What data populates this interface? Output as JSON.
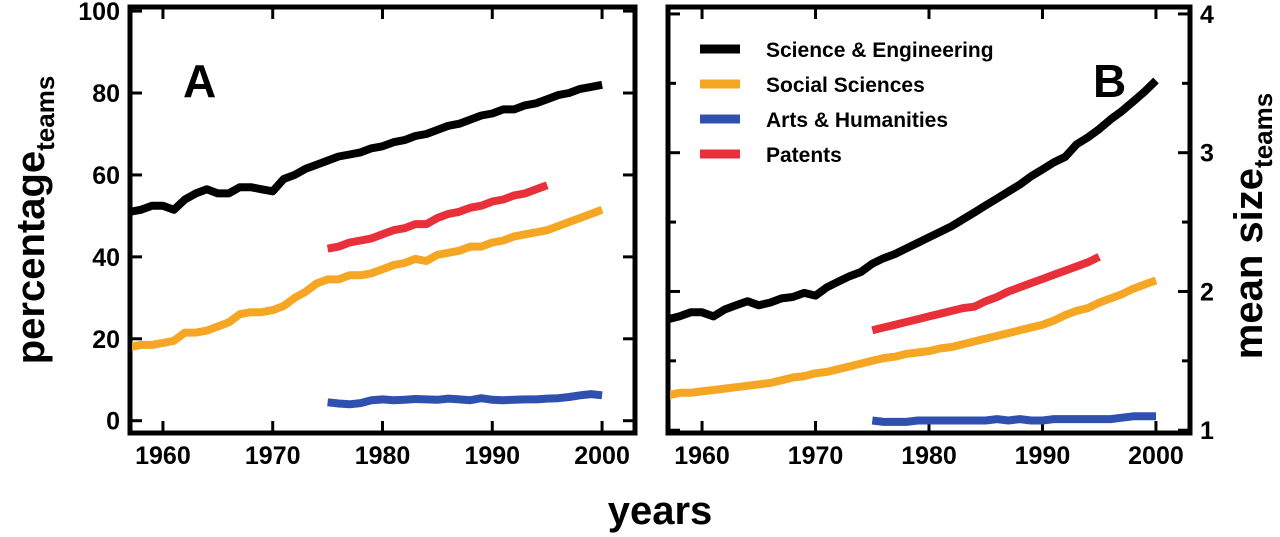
{
  "figure": {
    "xlabel": "years",
    "ylabel_left": {
      "main": "percentage",
      "sub": "teams"
    },
    "ylabel_right": {
      "main": "mean size",
      "sub": "teams"
    }
  },
  "chart_data": [
    {
      "type": "line",
      "panel": "A",
      "title": "",
      "xlabel": "years",
      "ylabel": "percentage teams",
      "xlim": [
        1957,
        2003
      ],
      "ylim": [
        -3,
        101
      ],
      "xticks": [
        1960,
        1970,
        1980,
        1990,
        2000
      ],
      "xtick_labels": [
        "1960",
        "1970",
        "1980",
        "1990",
        "2000"
      ],
      "yticks": [
        0,
        20,
        40,
        60,
        80,
        100
      ],
      "ytick_labels": [
        "0",
        "20",
        "40",
        "60",
        "80",
        "100"
      ],
      "grid": false,
      "series": [
        {
          "name": "Science & Engineering",
          "color": "#000000",
          "x": [
            1957,
            1958,
            1959,
            1960,
            1961,
            1962,
            1963,
            1964,
            1965,
            1966,
            1967,
            1968,
            1969,
            1970,
            1971,
            1972,
            1973,
            1974,
            1975,
            1976,
            1977,
            1978,
            1979,
            1980,
            1981,
            1982,
            1983,
            1984,
            1985,
            1986,
            1987,
            1988,
            1989,
            1990,
            1991,
            1992,
            1993,
            1994,
            1995,
            1996,
            1997,
            1998,
            1999,
            2000
          ],
          "y": [
            51,
            51.5,
            52.5,
            52.5,
            51.5,
            54,
            55.5,
            56.5,
            55.5,
            55.5,
            57,
            57,
            56.5,
            56,
            59,
            60,
            61.5,
            62.5,
            63.5,
            64.5,
            65,
            65.5,
            66.5,
            67,
            68,
            68.5,
            69.5,
            70,
            71,
            72,
            72.5,
            73.5,
            74.5,
            75,
            76,
            76,
            77,
            77.5,
            78.5,
            79.5,
            80,
            81,
            81.5,
            82
          ]
        },
        {
          "name": "Social Sciences",
          "color": "#F5A623",
          "x": [
            1957,
            1958,
            1959,
            1960,
            1961,
            1962,
            1963,
            1964,
            1965,
            1966,
            1967,
            1968,
            1969,
            1970,
            1971,
            1972,
            1973,
            1974,
            1975,
            1976,
            1977,
            1978,
            1979,
            1980,
            1981,
            1982,
            1983,
            1984,
            1985,
            1986,
            1987,
            1988,
            1989,
            1990,
            1991,
            1992,
            1993,
            1994,
            1995,
            1996,
            1997,
            1998,
            1999,
            2000
          ],
          "y": [
            18,
            18.5,
            18.5,
            19,
            19.5,
            21.5,
            21.5,
            22,
            23,
            24,
            26,
            26.5,
            26.5,
            27,
            28,
            30,
            31.5,
            33.5,
            34.5,
            34.5,
            35.5,
            35.5,
            36,
            37,
            38,
            38.5,
            39.5,
            39,
            40.5,
            41,
            41.5,
            42.5,
            42.5,
            43.5,
            44,
            45,
            45.5,
            46,
            46.5,
            47.5,
            48.5,
            49.5,
            50.5,
            51.5
          ]
        },
        {
          "name": "Arts & Humanities",
          "color": "#3050B0",
          "x": [
            1975,
            1976,
            1977,
            1978,
            1979,
            1980,
            1981,
            1982,
            1983,
            1984,
            1985,
            1986,
            1987,
            1988,
            1989,
            1990,
            1991,
            1992,
            1993,
            1994,
            1995,
            1996,
            1997,
            1998,
            1999,
            2000
          ],
          "y": [
            4.5,
            4.2,
            4.0,
            4.3,
            5.0,
            5.2,
            5.0,
            5.1,
            5.3,
            5.2,
            5.1,
            5.4,
            5.2,
            5.0,
            5.5,
            5.1,
            5.0,
            5.1,
            5.2,
            5.2,
            5.4,
            5.5,
            5.8,
            6.2,
            6.5,
            6.2
          ]
        },
        {
          "name": "Patents",
          "color": "#E8303A",
          "x": [
            1975,
            1976,
            1977,
            1978,
            1979,
            1980,
            1981,
            1982,
            1983,
            1984,
            1985,
            1986,
            1987,
            1988,
            1989,
            1990,
            1991,
            1992,
            1993,
            1994,
            1995
          ],
          "y": [
            42,
            42.5,
            43.5,
            44,
            44.5,
            45.5,
            46.5,
            47,
            48,
            48,
            49.5,
            50.5,
            51,
            52,
            52.5,
            53.5,
            54,
            55,
            55.5,
            56.5,
            57.5
          ]
        }
      ]
    },
    {
      "type": "line",
      "panel": "B",
      "title": "",
      "xlabel": "years",
      "ylabel": "mean size teams",
      "xlim": [
        1957,
        2003
      ],
      "ylim": [
        0.98,
        4.05
      ],
      "xticks": [
        1960,
        1970,
        1980,
        1990,
        2000
      ],
      "xtick_labels": [
        "1960",
        "1970",
        "1980",
        "1990",
        "2000"
      ],
      "yticks": [
        1,
        2,
        3,
        4
      ],
      "ytick_labels": [
        "1",
        "2",
        "3",
        "4"
      ],
      "yminor_ticks": [
        1.5,
        2.5,
        3.5
      ],
      "grid": false,
      "legend": "top-left",
      "series": [
        {
          "name": "Science & Engineering",
          "color": "#000000",
          "x": [
            1957,
            1958,
            1959,
            1960,
            1961,
            1962,
            1963,
            1964,
            1965,
            1966,
            1967,
            1968,
            1969,
            1970,
            1971,
            1972,
            1973,
            1974,
            1975,
            1976,
            1977,
            1978,
            1979,
            1980,
            1981,
            1982,
            1983,
            1984,
            1985,
            1986,
            1987,
            1988,
            1989,
            1990,
            1991,
            1992,
            1993,
            1994,
            1995,
            1996,
            1997,
            1998,
            1999,
            2000
          ],
          "y": [
            1.8,
            1.82,
            1.85,
            1.85,
            1.82,
            1.87,
            1.9,
            1.93,
            1.9,
            1.92,
            1.95,
            1.96,
            1.99,
            1.97,
            2.03,
            2.07,
            2.11,
            2.14,
            2.2,
            2.24,
            2.27,
            2.31,
            2.35,
            2.39,
            2.43,
            2.47,
            2.52,
            2.57,
            2.62,
            2.67,
            2.72,
            2.77,
            2.83,
            2.88,
            2.93,
            2.97,
            3.06,
            3.11,
            3.17,
            3.24,
            3.3,
            3.37,
            3.44,
            3.52
          ]
        },
        {
          "name": "Social Sciences",
          "color": "#F5A623",
          "x": [
            1957,
            1958,
            1959,
            1960,
            1961,
            1962,
            1963,
            1964,
            1965,
            1966,
            1967,
            1968,
            1969,
            1970,
            1971,
            1972,
            1973,
            1974,
            1975,
            1976,
            1977,
            1978,
            1979,
            1980,
            1981,
            1982,
            1983,
            1984,
            1985,
            1986,
            1987,
            1988,
            1989,
            1990,
            1991,
            1992,
            1993,
            1994,
            1995,
            1996,
            1997,
            1998,
            1999,
            2000
          ],
          "y": [
            1.25,
            1.27,
            1.27,
            1.28,
            1.29,
            1.3,
            1.31,
            1.32,
            1.33,
            1.34,
            1.36,
            1.38,
            1.39,
            1.41,
            1.42,
            1.44,
            1.46,
            1.48,
            1.5,
            1.52,
            1.53,
            1.55,
            1.56,
            1.57,
            1.59,
            1.6,
            1.62,
            1.64,
            1.66,
            1.68,
            1.7,
            1.72,
            1.74,
            1.76,
            1.79,
            1.83,
            1.86,
            1.88,
            1.92,
            1.95,
            1.98,
            2.02,
            2.05,
            2.08
          ]
        },
        {
          "name": "Arts & Humanities",
          "color": "#3050B0",
          "x": [
            1975,
            1976,
            1977,
            1978,
            1979,
            1980,
            1981,
            1982,
            1983,
            1984,
            1985,
            1986,
            1987,
            1988,
            1989,
            1990,
            1991,
            1992,
            1993,
            1994,
            1995,
            1996,
            1997,
            1998,
            1999,
            2000
          ],
          "y": [
            1.07,
            1.06,
            1.06,
            1.06,
            1.07,
            1.07,
            1.07,
            1.07,
            1.07,
            1.07,
            1.07,
            1.08,
            1.07,
            1.08,
            1.07,
            1.07,
            1.08,
            1.08,
            1.08,
            1.08,
            1.08,
            1.08,
            1.09,
            1.1,
            1.1,
            1.1
          ]
        },
        {
          "name": "Patents",
          "color": "#E8303A",
          "x": [
            1975,
            1976,
            1977,
            1978,
            1979,
            1980,
            1981,
            1982,
            1983,
            1984,
            1985,
            1986,
            1987,
            1988,
            1989,
            1990,
            1991,
            1992,
            1993,
            1994,
            1995
          ],
          "y": [
            1.72,
            1.74,
            1.76,
            1.78,
            1.8,
            1.82,
            1.84,
            1.86,
            1.88,
            1.89,
            1.93,
            1.96,
            2.0,
            2.03,
            2.06,
            2.09,
            2.12,
            2.15,
            2.18,
            2.21,
            2.25
          ]
        }
      ]
    }
  ]
}
